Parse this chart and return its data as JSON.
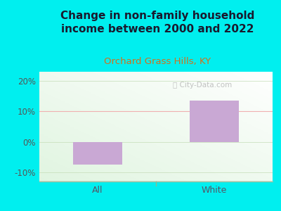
{
  "title": "Change in non-family household\nincome between 2000 and 2022",
  "subtitle": "Orchard Grass Hills, KY",
  "categories": [
    "All",
    "White"
  ],
  "values": [
    -7.5,
    13.5
  ],
  "bar_color": "#c9a8d4",
  "bar_width": 0.42,
  "ylim": [
    -13,
    23
  ],
  "yticks": [
    -10,
    0,
    10,
    20
  ],
  "yticklabels": [
    "-10%",
    "0%",
    "10%",
    "20%"
  ],
  "background_outer": "#00efef",
  "background_plot_color": "#e8f5e0",
  "title_color": "#1a1a2e",
  "subtitle_color": "#d4701a",
  "title_fontsize": 11.0,
  "subtitle_fontsize": 9.5,
  "tick_label_fontsize": 8.5,
  "xlabel_fontsize": 9.0,
  "watermark": "City-Data.com",
  "ref_line_y": 10,
  "ref_line_color": "#f0b0b0",
  "bottom_line_color": "#a0c0a0",
  "separator_color": "#90b890"
}
